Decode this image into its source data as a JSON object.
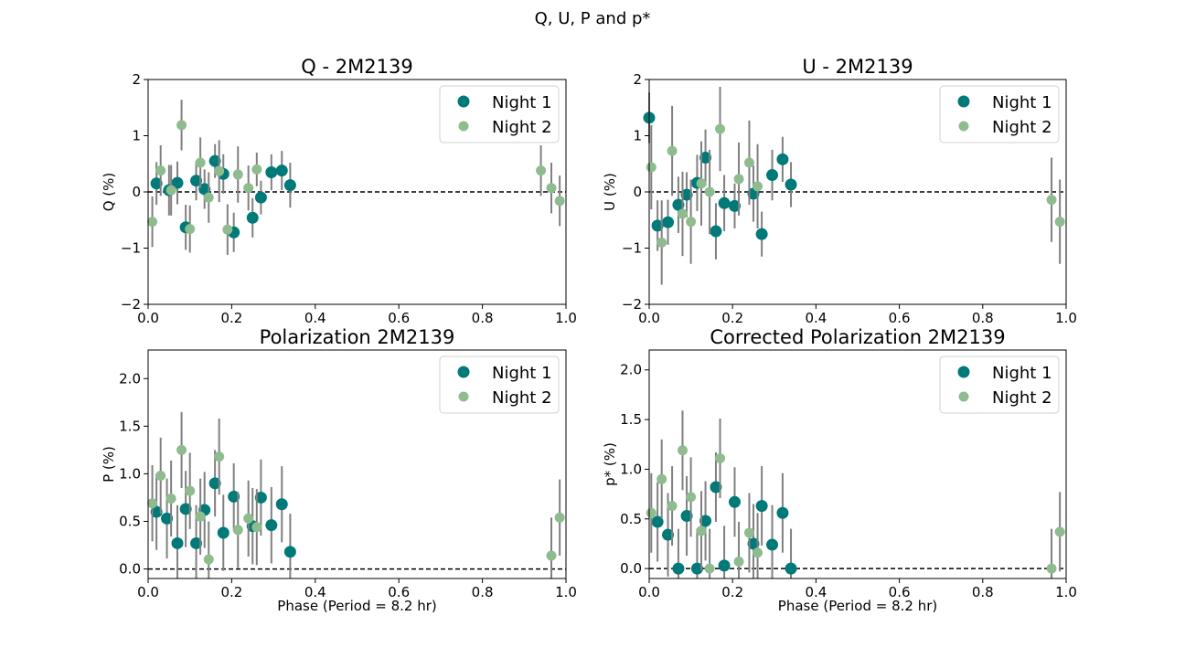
{
  "figure_title": "Q, U, P and p*",
  "colors": {
    "night1": "#007a78",
    "night2": "#8fbc8f",
    "errorbar": "#808080",
    "zero_line": "#000000"
  },
  "chart_data": [
    {
      "type": "scatter",
      "title": "Q - 2M2139",
      "xlabel": "",
      "ylabel": "Q (%)",
      "xlim": [
        0.0,
        1.0
      ],
      "ylim": [
        -2,
        2
      ],
      "xticks": [
        0.0,
        0.2,
        0.4,
        0.6,
        0.8,
        1.0
      ],
      "yticks": [
        -2,
        -1,
        0,
        1,
        2
      ],
      "reference_line": 0,
      "legend_placement": "upper right",
      "series": [
        {
          "name": "Night 1",
          "x": [
            0.02,
            0.05,
            0.07,
            0.09,
            0.115,
            0.135,
            0.16,
            0.18,
            0.205,
            0.25,
            0.27,
            0.295,
            0.32,
            0.34
          ],
          "y": [
            0.15,
            0.03,
            0.16,
            -0.63,
            0.2,
            0.05,
            0.55,
            0.32,
            -0.72,
            -0.46,
            -0.1,
            0.35,
            0.38,
            0.12
          ],
          "err": [
            0.38,
            0.45,
            0.38,
            0.4,
            0.35,
            0.35,
            0.3,
            0.35,
            0.35,
            0.35,
            0.3,
            0.32,
            0.35,
            0.4
          ]
        },
        {
          "name": "Night 2",
          "x": [
            0.01,
            0.03,
            0.055,
            0.08,
            0.1,
            0.125,
            0.145,
            0.17,
            0.19,
            0.215,
            0.24,
            0.26,
            0.94,
            0.965,
            0.985
          ],
          "y": [
            -0.53,
            0.38,
            0.03,
            1.19,
            -0.66,
            0.52,
            -0.1,
            0.37,
            -0.67,
            0.31,
            0.07,
            0.4,
            0.38,
            0.07,
            -0.16
          ],
          "err": [
            0.45,
            0.45,
            0.45,
            0.45,
            0.42,
            0.45,
            0.45,
            0.55,
            0.45,
            0.5,
            0.4,
            0.3,
            0.45,
            0.45,
            0.45
          ]
        }
      ]
    },
    {
      "type": "scatter",
      "title": "U - 2M2139",
      "xlabel": "",
      "ylabel": "U (%)",
      "xlim": [
        0.0,
        1.0
      ],
      "ylim": [
        -2,
        2
      ],
      "xticks": [
        0.0,
        0.2,
        0.4,
        0.6,
        0.8,
        1.0
      ],
      "yticks": [
        -2,
        -1,
        0,
        1,
        2
      ],
      "reference_line": 0,
      "legend_placement": "upper right",
      "series": [
        {
          "name": "Night 1",
          "x": [
            0.0,
            0.02,
            0.045,
            0.07,
            0.09,
            0.115,
            0.135,
            0.16,
            0.18,
            0.205,
            0.25,
            0.27,
            0.295,
            0.32,
            0.34
          ],
          "y": [
            1.32,
            -0.6,
            -0.54,
            -0.23,
            -0.05,
            0.16,
            0.61,
            -0.7,
            -0.2,
            -0.25,
            -0.03,
            -0.75,
            0.3,
            0.58,
            0.13
          ],
          "err": [
            0.45,
            0.45,
            0.4,
            0.5,
            0.4,
            0.5,
            0.5,
            0.5,
            0.5,
            0.4,
            0.5,
            0.4,
            0.45,
            0.4,
            0.4
          ]
        },
        {
          "name": "Night 2",
          "x": [
            0.005,
            0.03,
            0.055,
            0.08,
            0.1,
            0.125,
            0.145,
            0.17,
            0.215,
            0.24,
            0.26,
            0.965,
            0.985
          ],
          "y": [
            0.44,
            -0.9,
            0.73,
            -0.39,
            -0.53,
            0.15,
            0.0,
            1.12,
            0.23,
            0.52,
            0.1,
            -0.14,
            -0.53
          ],
          "err": [
            0.75,
            0.75,
            0.8,
            0.75,
            0.75,
            0.75,
            0.75,
            0.75,
            0.65,
            0.75,
            0.75,
            0.75,
            0.75
          ]
        }
      ]
    },
    {
      "type": "scatter",
      "title": "Polarization 2M2139",
      "xlabel": "Phase (Period = 8.2 hr)",
      "ylabel": "P (%)",
      "xlim": [
        0.0,
        1.0
      ],
      "ylim": [
        -0.1,
        2.3
      ],
      "xticks": [
        0.0,
        0.2,
        0.4,
        0.6,
        0.8,
        1.0
      ],
      "yticks": [
        0.0,
        0.5,
        1.0,
        1.5,
        2.0
      ],
      "reference_line": 0,
      "legend_placement": "upper right",
      "series": [
        {
          "name": "Night 1",
          "x": [
            0.02,
            0.045,
            0.07,
            0.09,
            0.115,
            0.135,
            0.16,
            0.18,
            0.205,
            0.25,
            0.27,
            0.295,
            0.32,
            0.34
          ],
          "y": [
            0.6,
            0.53,
            0.27,
            0.63,
            0.27,
            0.62,
            0.9,
            0.38,
            0.76,
            0.45,
            0.75,
            0.46,
            0.68,
            0.18
          ],
          "err": [
            0.4,
            0.42,
            0.4,
            0.4,
            0.4,
            0.4,
            0.35,
            0.4,
            0.35,
            0.4,
            0.4,
            0.4,
            0.4,
            0.4
          ]
        },
        {
          "name": "Night 2",
          "x": [
            0.01,
            0.03,
            0.055,
            0.08,
            0.1,
            0.125,
            0.145,
            0.17,
            0.215,
            0.24,
            0.26,
            0.965,
            0.985
          ],
          "y": [
            0.69,
            0.98,
            0.74,
            1.25,
            0.82,
            0.55,
            0.1,
            1.18,
            0.41,
            0.53,
            0.44,
            0.14,
            0.54
          ],
          "err": [
            0.4,
            0.4,
            0.4,
            0.4,
            0.4,
            0.4,
            0.4,
            0.4,
            0.4,
            0.4,
            0.4,
            0.4,
            0.4
          ]
        }
      ]
    },
    {
      "type": "scatter",
      "title": "Corrected Polarization 2M2139",
      "xlabel": "Phase (Period = 8.2 hr)",
      "ylabel": "p* (%)",
      "xlim": [
        0.0,
        1.0
      ],
      "ylim": [
        -0.1,
        2.2
      ],
      "xticks": [
        0.0,
        0.2,
        0.4,
        0.6,
        0.8,
        1.0
      ],
      "yticks": [
        0.0,
        0.5,
        1.0,
        1.5,
        2.0
      ],
      "reference_line": 0,
      "legend_placement": "upper right",
      "series": [
        {
          "name": "Night 1",
          "x": [
            0.02,
            0.045,
            0.07,
            0.09,
            0.115,
            0.135,
            0.16,
            0.18,
            0.205,
            0.25,
            0.27,
            0.295,
            0.32,
            0.34
          ],
          "y": [
            0.47,
            0.34,
            0.0,
            0.53,
            0.0,
            0.48,
            0.82,
            0.03,
            0.67,
            0.25,
            0.63,
            0.24,
            0.56,
            0.0
          ],
          "err": [
            0.4,
            0.42,
            0.4,
            0.4,
            0.4,
            0.4,
            0.35,
            0.4,
            0.35,
            0.4,
            0.4,
            0.4,
            0.4,
            0.4
          ]
        },
        {
          "name": "Night 2",
          "x": [
            0.005,
            0.03,
            0.055,
            0.08,
            0.1,
            0.125,
            0.145,
            0.17,
            0.215,
            0.24,
            0.26,
            0.965,
            0.985
          ],
          "y": [
            0.56,
            0.9,
            0.63,
            1.19,
            0.72,
            0.38,
            0.0,
            1.11,
            0.07,
            0.36,
            0.16,
            0.0,
            0.37
          ],
          "err": [
            0.4,
            0.4,
            0.4,
            0.4,
            0.4,
            0.4,
            0.4,
            0.4,
            0.4,
            0.4,
            0.4,
            0.4,
            0.4
          ]
        }
      ]
    }
  ]
}
